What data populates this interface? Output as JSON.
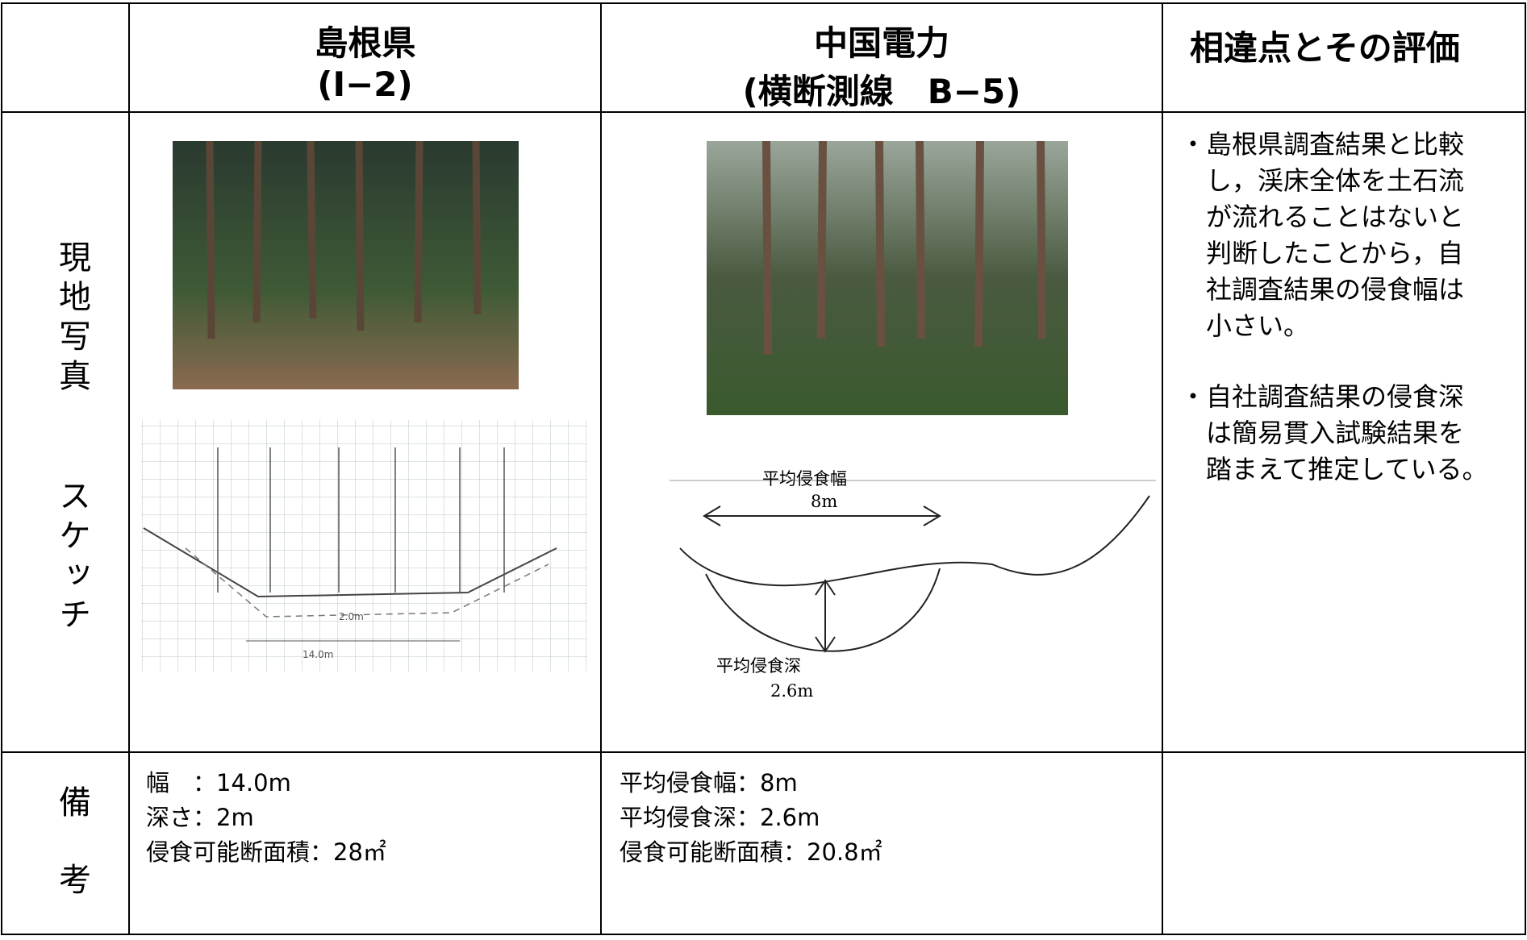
{
  "header": {
    "shimane_title": "島根県",
    "shimane_sub": "(I−2)",
    "chugoku_title": "中国電力",
    "chugoku_sub": "(横断測線　B−5)",
    "evaluation_title": "相違点とその評価"
  },
  "rows": {
    "photo_label": "現地写真",
    "sketch_label": "スケッチ",
    "notes_label": "備考"
  },
  "sketch_texts": {
    "shimane_width": "14.0m",
    "shimane_depth": "2.0m",
    "avg_width_label": "平均侵食幅",
    "avg_width": "8m",
    "avg_depth_label": "平均侵食深",
    "avg_depth": "2.6m"
  },
  "evaluation": {
    "points": [
      {
        "lines": [
          "・島根県調査結果と比較",
          "し，渓床全体を土石流",
          "が流れることはないと",
          "判断したことから，自",
          "社調査結果の侵食幅は",
          "小さい。"
        ]
      },
      {
        "lines": [
          "・自社調査結果の侵食深",
          "は簡易貫入試験結果を",
          "踏まえて推定している。"
        ]
      }
    ]
  },
  "notes": {
    "shimane": [
      "幅　：14.0m",
      "深さ：2m",
      "侵食可能断面積：28㎡"
    ],
    "chugoku": [
      "平均侵食幅：8m",
      "平均侵食深：2.6m",
      "侵食可能断面積：20.8㎡"
    ]
  }
}
